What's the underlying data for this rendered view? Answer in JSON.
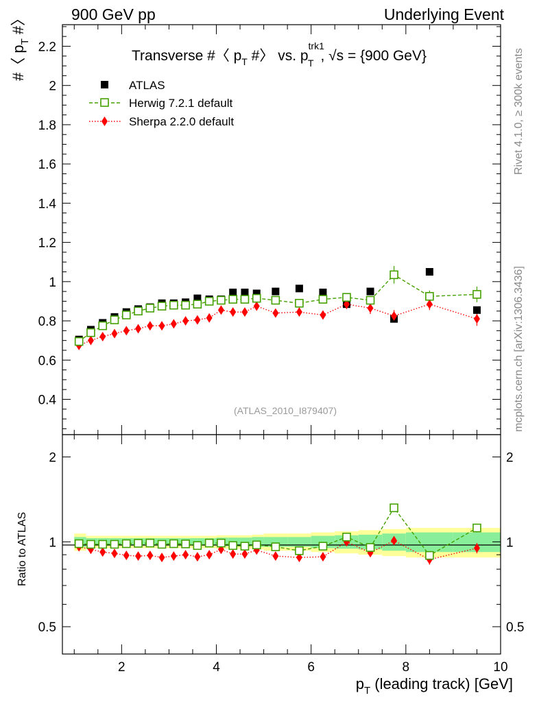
{
  "header": {
    "left": "900 GeV pp",
    "right": "Underlying Event"
  },
  "side_labels": {
    "rivet": "Rivet 4.1.0, ≥ 300k events",
    "mcplots": "mcplots.cern.ch [arXiv:1306.3436]"
  },
  "chart_data": [
    {
      "type": "scatter",
      "panel": "main",
      "title": "Transverse #〈 p_T #〉 vs. p_T^trk1, √s = {900 GeV}",
      "title_parts": {
        "a": "Transverse #〈 p",
        "a_sub": "T",
        "b": " #〉 vs. p",
        "b_sup": "trk1",
        "b_sub": "T",
        "c": ", √s = {900 GeV}"
      },
      "ylabel": "#〈 p_T #〉",
      "ylabel_parts": {
        "a": "#〈 p",
        "sub": "T",
        "b": " #〉"
      },
      "xlim": [
        0.75,
        10.0
      ],
      "ylim": [
        0.22,
        2.31
      ],
      "yticks": [
        0.4,
        0.6,
        0.8,
        1.0,
        1.2,
        1.4,
        1.6,
        1.8,
        2.0,
        2.2
      ],
      "ytick_labels": [
        "0.4",
        "0.6",
        "0.8",
        "1",
        "1.2",
        "1.4",
        "1.6",
        "1.8",
        "2",
        "2.2"
      ],
      "watermark": "(ATLAS_2010_I879407)",
      "x": [
        1.1,
        1.35,
        1.6,
        1.85,
        2.1,
        2.35,
        2.6,
        2.85,
        3.1,
        3.35,
        3.6,
        3.85,
        4.1,
        4.35,
        4.6,
        4.85,
        5.25,
        5.75,
        6.25,
        6.75,
        7.25,
        7.75,
        8.5,
        9.5
      ],
      "series": [
        {
          "name": "ATLAS",
          "style": "square-filled",
          "color": "#000000",
          "values": [
            0.705,
            0.755,
            0.79,
            0.82,
            0.845,
            0.86,
            0.87,
            0.89,
            0.89,
            0.895,
            0.915,
            0.91,
            0.91,
            0.945,
            0.945,
            0.94,
            0.95,
            0.965,
            0.945,
            0.885,
            0.95,
            0.81,
            1.05,
            0.855
          ]
        },
        {
          "name": "Herwig 7.2.1 default",
          "style": "square-open-dashed",
          "color": "#44a000",
          "values": [
            0.695,
            0.74,
            0.775,
            0.805,
            0.83,
            0.85,
            0.865,
            0.875,
            0.88,
            0.88,
            0.885,
            0.9,
            0.905,
            0.91,
            0.91,
            0.915,
            0.905,
            0.89,
            0.91,
            0.92,
            0.905,
            1.035,
            0.925,
            0.935
          ],
          "errors": [
            0.004,
            0.004,
            0.004,
            0.005,
            0.005,
            0.005,
            0.005,
            0.006,
            0.006,
            0.006,
            0.007,
            0.007,
            0.008,
            0.008,
            0.009,
            0.01,
            0.01,
            0.012,
            0.014,
            0.016,
            0.02,
            0.045,
            0.03,
            0.04
          ]
        },
        {
          "name": "Sherpa 2.2.0 default",
          "style": "diamond-filled-dotted",
          "color": "#ff0000",
          "values": [
            0.675,
            0.7,
            0.72,
            0.735,
            0.75,
            0.76,
            0.775,
            0.775,
            0.785,
            0.8,
            0.805,
            0.815,
            0.855,
            0.845,
            0.845,
            0.875,
            0.84,
            0.845,
            0.83,
            0.885,
            0.865,
            0.825,
            0.885,
            0.81
          ],
          "errors": [
            0.005,
            0.005,
            0.005,
            0.005,
            0.006,
            0.006,
            0.006,
            0.007,
            0.007,
            0.008,
            0.008,
            0.009,
            0.01,
            0.011,
            0.012,
            0.013,
            0.014,
            0.016,
            0.018,
            0.025,
            0.03,
            0.03,
            0.03,
            0.035
          ]
        }
      ]
    },
    {
      "type": "scatter",
      "panel": "ratio",
      "ylabel": "Ratio to ATLAS",
      "xlabel": "p_T (leading track) [GeV]",
      "xlabel_parts": {
        "a": "p",
        "sub": "T",
        "b": " (leading track) [GeV]"
      },
      "xlim": [
        0.75,
        10.0
      ],
      "ylim": [
        0.4,
        2.4
      ],
      "yscale": "log",
      "yticks": [
        0.5,
        1,
        2
      ],
      "ytick_labels": [
        "0.5",
        "1",
        "2"
      ],
      "xticks": [
        2,
        4,
        6,
        8,
        10
      ],
      "xtick_labels": [
        "2",
        "4",
        "6",
        "8",
        "10"
      ],
      "x": [
        1.1,
        1.35,
        1.6,
        1.85,
        2.1,
        2.35,
        2.6,
        2.85,
        3.1,
        3.35,
        3.6,
        3.85,
        4.1,
        4.35,
        4.6,
        4.85,
        5.25,
        5.75,
        6.25,
        6.75,
        7.25,
        7.75,
        8.5,
        9.5
      ],
      "bin_edges": [
        1.0,
        1.25,
        1.5,
        1.75,
        2.0,
        2.25,
        2.5,
        2.75,
        3.0,
        3.25,
        3.5,
        3.75,
        4.0,
        4.25,
        4.5,
        4.75,
        5.0,
        5.5,
        6.0,
        6.5,
        7.0,
        7.5,
        8.0,
        9.0,
        10.0
      ],
      "band_inner": [
        0.04,
        0.03,
        0.03,
        0.03,
        0.03,
        0.03,
        0.03,
        0.03,
        0.03,
        0.03,
        0.03,
        0.03,
        0.035,
        0.035,
        0.035,
        0.04,
        0.04,
        0.04,
        0.05,
        0.055,
        0.06,
        0.07,
        0.08,
        0.08
      ],
      "band_outer": [
        0.07,
        0.05,
        0.05,
        0.05,
        0.05,
        0.05,
        0.05,
        0.05,
        0.05,
        0.05,
        0.05,
        0.05,
        0.055,
        0.055,
        0.055,
        0.06,
        0.07,
        0.07,
        0.08,
        0.09,
        0.1,
        0.11,
        0.12,
        0.12
      ],
      "band_colors": {
        "inner": "#88ee99",
        "outer": "#ffff99"
      },
      "series": [
        {
          "name": "Herwig 7.2.1 default",
          "color": "#44a000",
          "values": [
            0.985,
            0.98,
            0.98,
            0.98,
            0.985,
            0.988,
            0.99,
            0.98,
            0.985,
            0.983,
            0.97,
            0.99,
            0.99,
            0.97,
            0.965,
            0.975,
            0.96,
            0.93,
            0.965,
            1.04,
            0.955,
            1.32,
            0.895,
            1.12
          ],
          "errors": [
            0.006,
            0.006,
            0.006,
            0.006,
            0.006,
            0.006,
            0.007,
            0.007,
            0.007,
            0.007,
            0.008,
            0.008,
            0.009,
            0.009,
            0.01,
            0.011,
            0.012,
            0.013,
            0.015,
            0.018,
            0.022,
            0.04,
            0.03,
            0.04
          ]
        },
        {
          "name": "Sherpa 2.2.0 default",
          "color": "#ff0000",
          "values": [
            0.96,
            0.94,
            0.92,
            0.91,
            0.895,
            0.89,
            0.895,
            0.88,
            0.89,
            0.9,
            0.885,
            0.9,
            0.94,
            0.905,
            0.905,
            0.935,
            0.89,
            0.88,
            0.885,
            1.0,
            0.915,
            1.01,
            0.865,
            0.95
          ],
          "errors": [
            0.007,
            0.007,
            0.007,
            0.007,
            0.008,
            0.008,
            0.008,
            0.008,
            0.009,
            0.009,
            0.01,
            0.01,
            0.011,
            0.012,
            0.013,
            0.014,
            0.016,
            0.018,
            0.02,
            0.025,
            0.03,
            0.035,
            0.035,
            0.04
          ]
        }
      ]
    }
  ]
}
